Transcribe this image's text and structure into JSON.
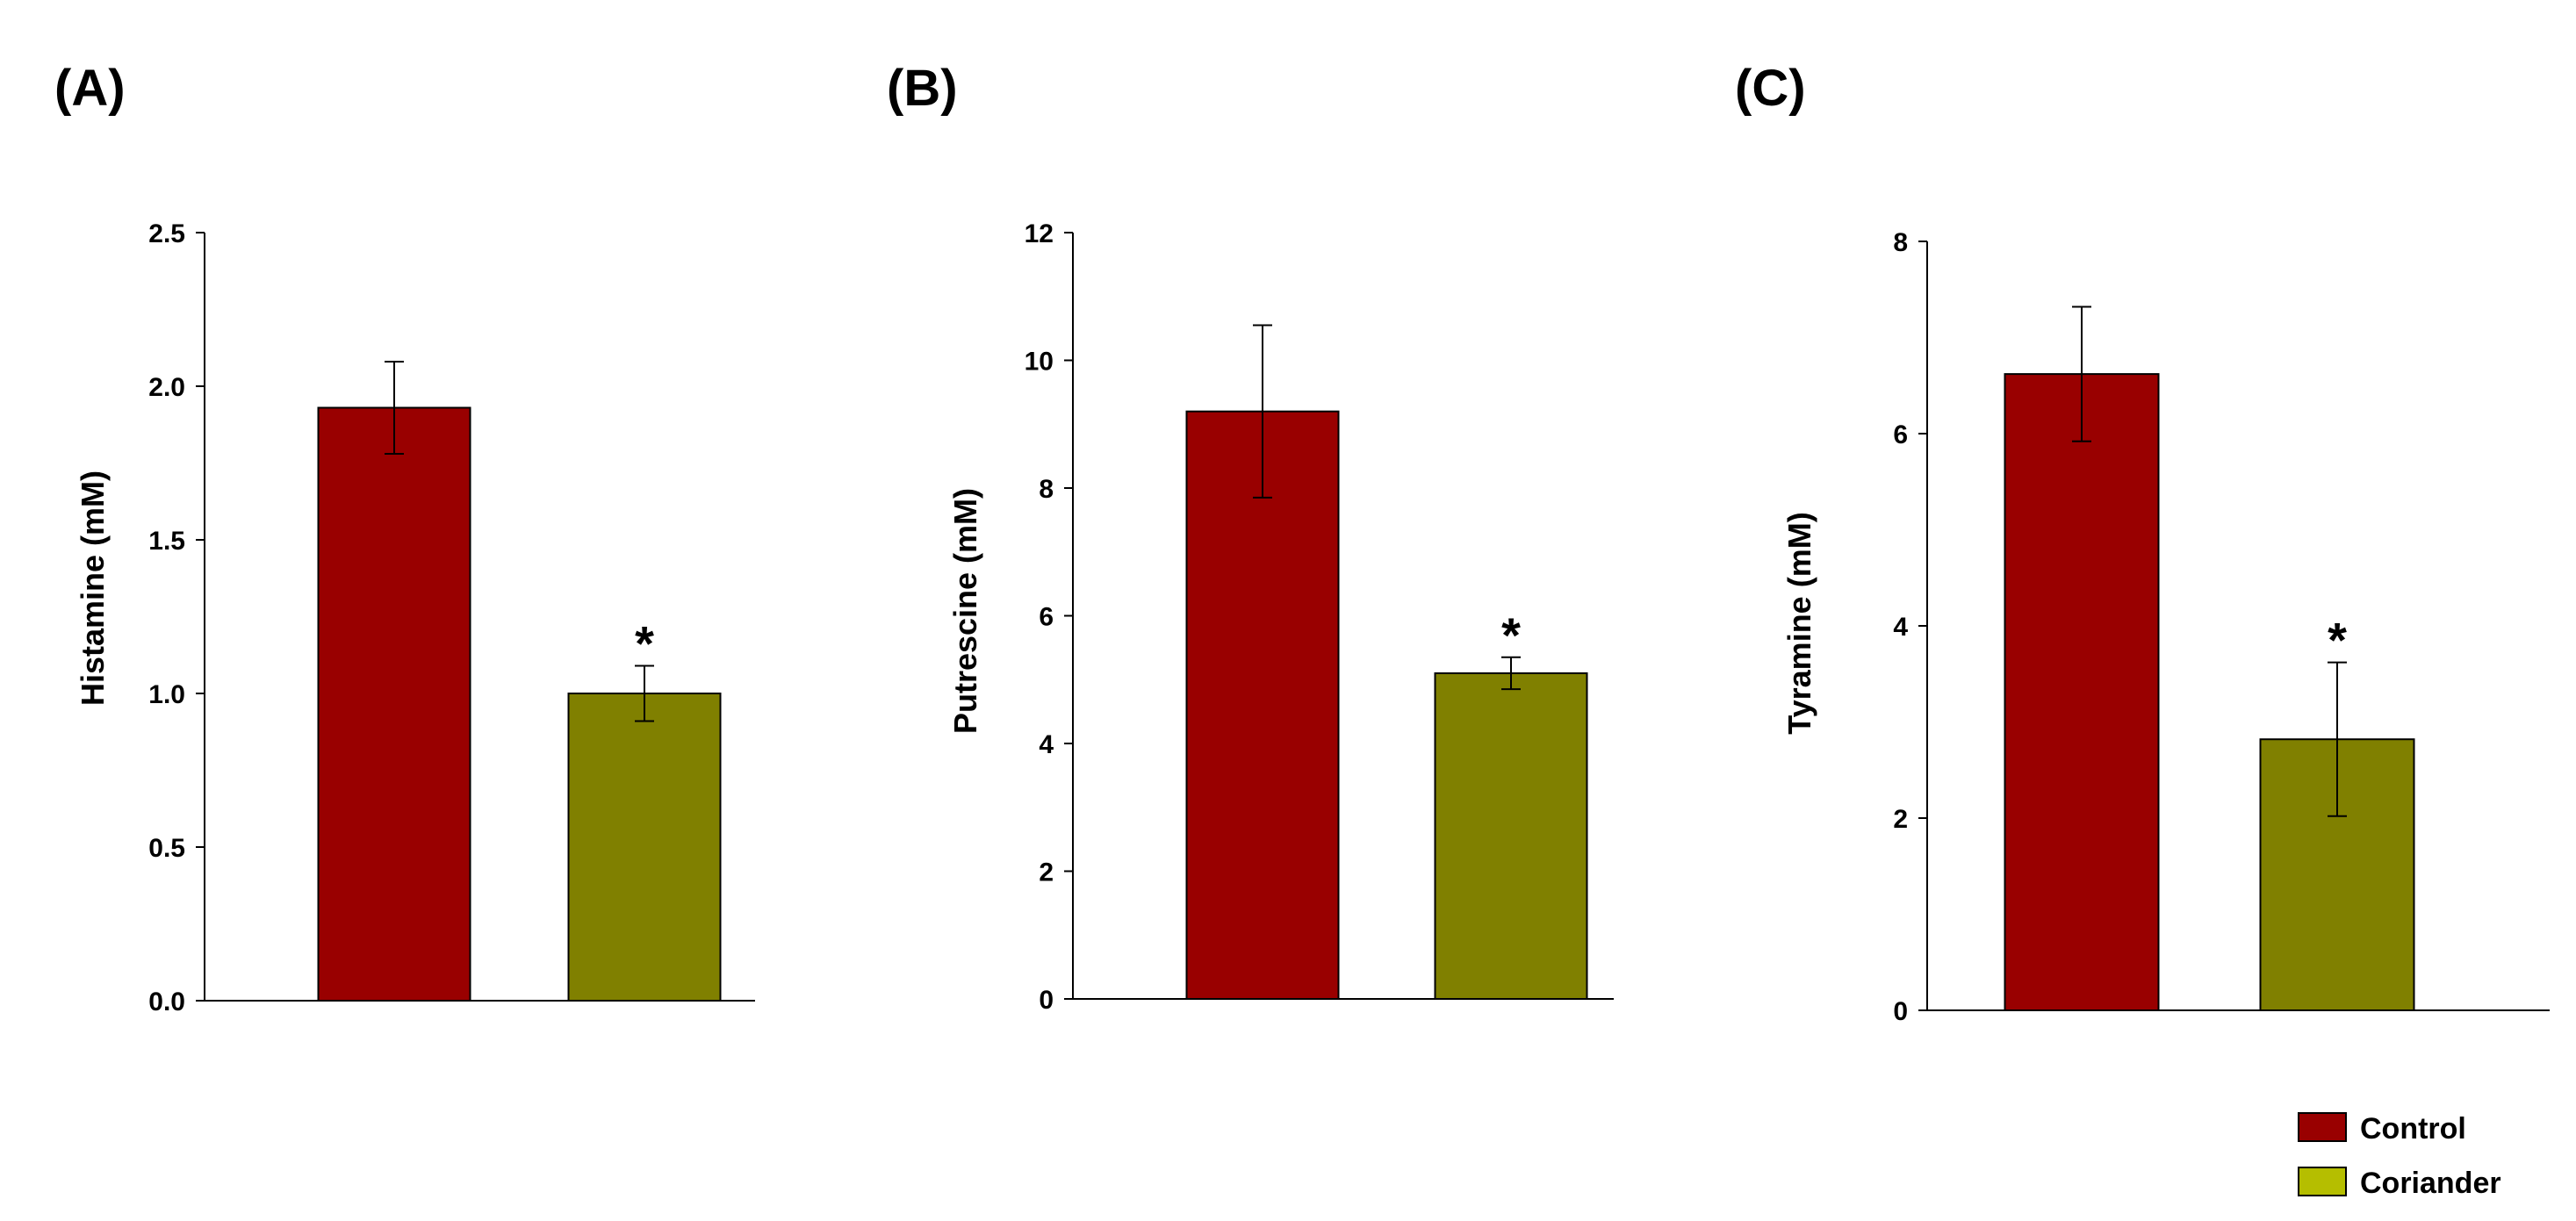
{
  "colors": {
    "control": "#990000",
    "coriander": "#808000",
    "coriander_legend": "#b5be00",
    "axis": "#000000"
  },
  "chart_data": [
    {
      "type": "bar",
      "panel_label": "(A)",
      "ylabel": "Histamine (mM)",
      "xlabel": "",
      "ylim": [
        0,
        2.5
      ],
      "yticks": [
        0,
        0.5,
        1.0,
        1.5,
        2.0,
        2.5
      ],
      "ytick_labels": [
        "0.0",
        "0.5",
        "1.0",
        "1.5",
        "2.0",
        "2.5"
      ],
      "categories": [
        "Control",
        "Coriander"
      ],
      "values": [
        1.93,
        1.0
      ],
      "errors": [
        0.15,
        0.09
      ],
      "annotations": [
        "",
        "*"
      ]
    },
    {
      "type": "bar",
      "panel_label": "(B)",
      "ylabel": "Putrescine  (mM)",
      "xlabel": "",
      "ylim": [
        0,
        12
      ],
      "yticks": [
        0,
        2,
        4,
        6,
        8,
        10,
        12
      ],
      "ytick_labels": [
        "0",
        "2",
        "4",
        "6",
        "8",
        "10",
        "12"
      ],
      "categories": [
        "Control",
        "Coriander"
      ],
      "values": [
        9.2,
        5.1
      ],
      "errors": [
        1.35,
        0.25
      ],
      "annotations": [
        "",
        "*"
      ]
    },
    {
      "type": "bar",
      "panel_label": "(C)",
      "ylabel": "Tyramine (mM)",
      "xlabel": "",
      "ylim": [
        0,
        8
      ],
      "yticks": [
        0,
        2,
        4,
        6,
        8
      ],
      "ytick_labels": [
        "0",
        "2",
        "4",
        "6",
        "8"
      ],
      "categories": [
        "Control",
        "Coriander"
      ],
      "values": [
        6.62,
        2.82
      ],
      "errors": [
        0.7,
        0.8
      ],
      "annotations": [
        "",
        "*"
      ]
    }
  ],
  "legend": {
    "position": "bottom-right",
    "items": [
      {
        "label": "Control",
        "color": "#990000"
      },
      {
        "label": "Coriander",
        "color": "#b5be00"
      }
    ]
  }
}
